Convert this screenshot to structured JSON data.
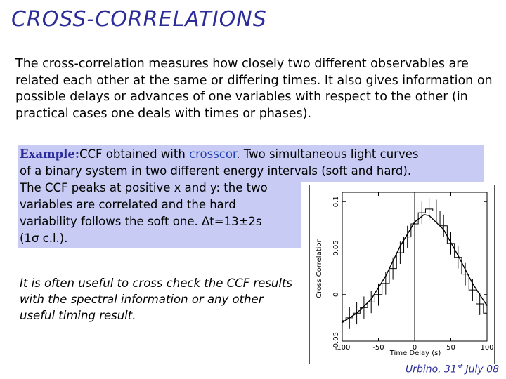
{
  "slide": {
    "title": "Cross-correlations",
    "intro": "The cross-correlation measures how closely two different  observables are related each other at the same or differing times. It also gives information on possible delays or advances of one variables with respect to the other (in practical cases one deals with times or phases).",
    "example": {
      "label": "Example:",
      "line1_pre": "CCF obtained with ",
      "tool": "crosscor",
      "line1_post": ". Two simultaneous light curves",
      "line2": "of a binary system in two different energy intervals (soft and hard).",
      "line3": "The CCF peaks at positive x and y: the two",
      "line4": "variables are correlated and the hard",
      "line5": "variability follows the soft one. Δt=13±2s",
      "line6": "(1σ c.l.)."
    },
    "note": "It is often useful to cross check the CCF results with the spectral information or any other useful timing result.",
    "footer": {
      "place": "Urbino, 31",
      "sup": "st",
      "date": " July 08"
    }
  },
  "chart_data": {
    "type": "line",
    "title": "",
    "xlabel": "Time Delay (s)",
    "ylabel": "Cross Correlation",
    "xlim": [
      -100,
      100
    ],
    "ylim": [
      -0.05,
      0.11
    ],
    "x_ticks": [
      -100,
      -50,
      0,
      50,
      100
    ],
    "x_tick_labels": [
      "-100",
      "-50",
      "0",
      "50",
      "100"
    ],
    "y_ticks": [
      -0.05,
      0,
      0.05,
      0.1
    ],
    "y_tick_labels": [
      "-0.05",
      "0",
      "0.05",
      "0.1"
    ],
    "series": [
      {
        "name": "CCF histogram",
        "x": [
          -100,
          -90,
          -80,
          -70,
          -60,
          -50,
          -40,
          -30,
          -20,
          -10,
          0,
          10,
          20,
          30,
          40,
          50,
          60,
          70,
          80,
          90,
          100
        ],
        "values": [
          -0.028,
          -0.025,
          -0.02,
          -0.014,
          -0.008,
          0.0,
          0.012,
          0.028,
          0.045,
          0.062,
          0.076,
          0.088,
          0.092,
          0.09,
          0.074,
          0.055,
          0.04,
          0.022,
          0.005,
          -0.01,
          -0.02
        ],
        "errors": [
          0.012,
          0.012,
          0.012,
          0.012,
          0.012,
          0.012,
          0.012,
          0.012,
          0.012,
          0.012,
          0.012,
          0.012,
          0.012,
          0.012,
          0.012,
          0.012,
          0.012,
          0.012,
          0.012,
          0.012,
          0.012
        ]
      },
      {
        "name": "Gaussian fit",
        "x": [
          -100,
          -80,
          -60,
          -40,
          -20,
          0,
          13,
          20,
          40,
          60,
          80,
          100
        ],
        "values": [
          -0.03,
          -0.02,
          -0.005,
          0.02,
          0.052,
          0.078,
          0.086,
          0.085,
          0.07,
          0.042,
          0.012,
          -0.012
        ]
      }
    ],
    "peak_marker_x": 0
  }
}
